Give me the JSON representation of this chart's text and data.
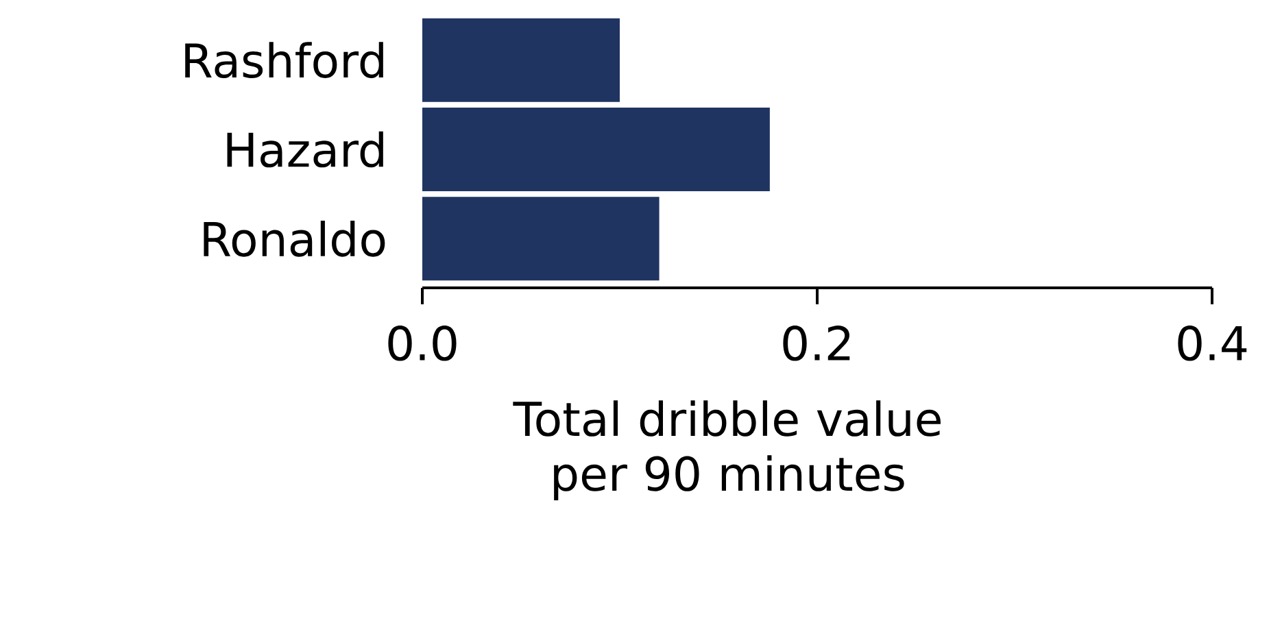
{
  "chart_data": {
    "type": "bar",
    "orientation": "horizontal",
    "xlabel": "Total dribble value per 90 minutes",
    "categories": [
      "Rashford",
      "Hazard",
      "Ronaldo"
    ],
    "values": [
      0.1,
      0.176,
      0.12
    ],
    "color": "#1f3461",
    "xlim": [
      0,
      0.4
    ],
    "xticks": [
      {
        "value": 0,
        "label": "0.0"
      },
      {
        "value": 0.2,
        "label": "0.2"
      },
      {
        "value": 0.4,
        "label": "0.4"
      }
    ],
    "grid": false
  }
}
